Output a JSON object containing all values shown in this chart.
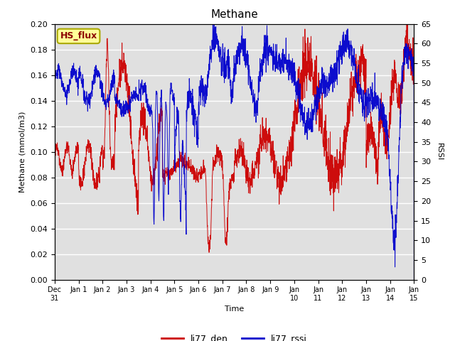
{
  "title": "Methane",
  "xlabel": "Time",
  "ylabel_left": "Methane (mmol/m3)",
  "ylabel_right": "RSSI",
  "left_ylim": [
    0.0,
    0.2
  ],
  "right_ylim": [
    0,
    65
  ],
  "left_yticks": [
    0.0,
    0.02,
    0.04,
    0.06,
    0.08,
    0.1,
    0.12,
    0.14,
    0.16,
    0.18,
    0.2
  ],
  "right_yticks": [
    0,
    5,
    10,
    15,
    20,
    25,
    30,
    35,
    40,
    45,
    50,
    55,
    60,
    65
  ],
  "bg_color": "#e0e0e0",
  "line_color_den": "#cc0000",
  "line_color_rssi": "#0000cc",
  "legend_labels": [
    "li77_den",
    "li77_rssi"
  ],
  "annotation_text": "HS_flux",
  "annotation_bg": "#ffff99",
  "annotation_border": "#aaa800",
  "xtick_days": [
    0,
    1,
    2,
    3,
    4,
    5,
    6,
    7,
    8,
    9,
    10,
    11,
    12,
    13,
    14,
    15
  ],
  "xtick_labels": [
    "Dec\n31",
    "Jan 1",
    "Jan 2",
    "Jan 3",
    "Jan 4",
    "Jan 5",
    "Jan 6",
    "Jan 7",
    "Jan 8",
    "Jan 9",
    "Jan\n10",
    "Jan\n11",
    "Jan\n12",
    "Jan\n13",
    "Jan\n14",
    "Jan\n15"
  ]
}
